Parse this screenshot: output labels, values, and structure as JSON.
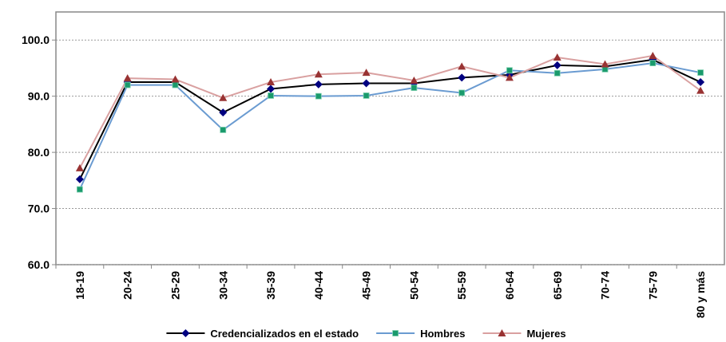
{
  "chart_data": {
    "type": "line",
    "categories": [
      "18-19",
      "20-24",
      "25-29",
      "30-34",
      "35-39",
      "40-44",
      "45-49",
      "50-54",
      "55-59",
      "60-64",
      "65-69",
      "70-74",
      "75-79",
      "80 y más"
    ],
    "series": [
      {
        "name": "Credencializados en el estado",
        "color": "#000000",
        "marker_color": "#000080",
        "marker": "diamond",
        "values": [
          75.2,
          92.5,
          92.5,
          87.1,
          91.3,
          92.1,
          92.3,
          92.3,
          93.3,
          93.8,
          95.5,
          95.3,
          96.5,
          92.5
        ]
      },
      {
        "name": "Hombres",
        "color": "#6a9bd1",
        "marker_color": "#1a9a6c",
        "marker": "square",
        "values": [
          73.4,
          92.0,
          92.0,
          84.0,
          90.1,
          90.0,
          90.1,
          91.5,
          90.6,
          94.6,
          94.1,
          94.8,
          95.9,
          94.2
        ]
      },
      {
        "name": "Mujeres",
        "color": "#d9a0a0",
        "marker_color": "#993333",
        "marker": "triangle",
        "values": [
          77.2,
          93.2,
          93.0,
          89.7,
          92.5,
          93.9,
          94.2,
          92.8,
          95.3,
          93.3,
          96.9,
          95.7,
          97.2,
          91.0
        ]
      }
    ],
    "ylim": [
      60,
      105
    ],
    "yticks": [
      {
        "value": 60,
        "label": "60.0"
      },
      {
        "value": 70,
        "label": "70.0"
      },
      {
        "value": 80,
        "label": "80.0"
      },
      {
        "value": 90,
        "label": "90.0"
      },
      {
        "value": 100,
        "label": "100.0"
      }
    ],
    "grid": true,
    "legend": "bottom"
  }
}
